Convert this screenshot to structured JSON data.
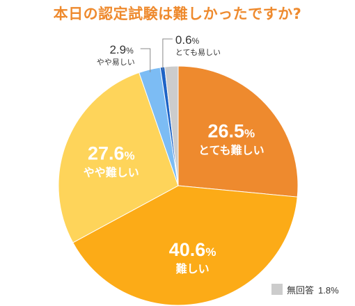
{
  "chart_data": {
    "type": "pie",
    "title": "本日の認定試験は難しかったですか?",
    "slices": [
      {
        "label": "とても難しい",
        "value": 26.5,
        "value_text": "26.5",
        "unit": "%",
        "color": "#ee8a2e",
        "label_color": "#ffffff",
        "label_place": "inside"
      },
      {
        "label": "難しい",
        "value": 40.6,
        "value_text": "40.6",
        "unit": "%",
        "color": "#fcab17",
        "label_color": "#ffffff",
        "label_place": "inside"
      },
      {
        "label": "やや難しい",
        "value": 27.6,
        "value_text": "27.6",
        "unit": "%",
        "color": "#fed45a",
        "label_color": "#ffffff",
        "label_place": "inside"
      },
      {
        "label": "やや易しい",
        "value": 2.9,
        "value_text": "2.9",
        "unit": "%",
        "color": "#7cbcf4",
        "label_color": "#333333",
        "label_place": "callout-left"
      },
      {
        "label": "とても易しい",
        "value": 0.6,
        "value_text": "0.6",
        "unit": "%",
        "color": "#1d63c6",
        "label_color": "#333333",
        "label_place": "callout-right"
      },
      {
        "label": "無回答",
        "value": 1.8,
        "value_text": "1.8",
        "unit": "%",
        "color": "#cccccc",
        "label_color": "#333333",
        "label_place": "legend"
      }
    ],
    "start": "12 o'clock",
    "direction": "clockwise",
    "legend": {
      "placement": "bottom-right"
    },
    "grid": false
  }
}
